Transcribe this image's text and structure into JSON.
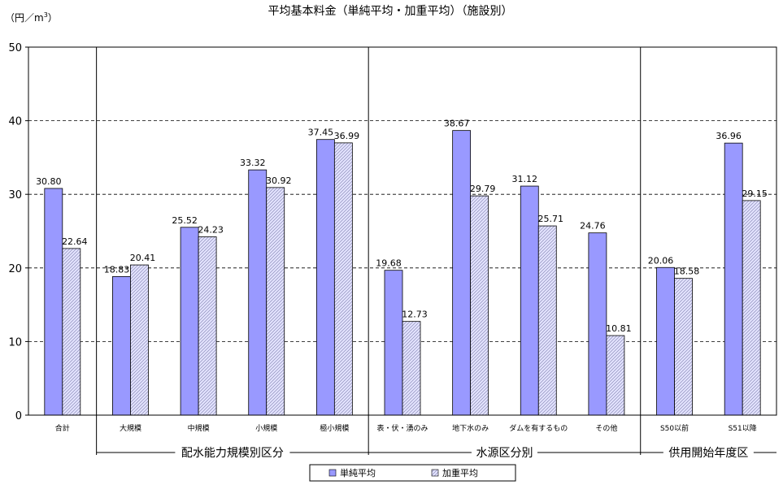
{
  "chart_data": {
    "type": "bar",
    "title": "平均基本料金（単純平均・加重平均）（施設別）",
    "yunit_prefix": "（円／m",
    "yunit_sup": "3",
    "yunit_suffix": "）",
    "ylim": [
      0,
      50
    ],
    "yticks": [
      0,
      10,
      20,
      30,
      40,
      50
    ],
    "grid": true,
    "legend_position": "bottom-center",
    "categories": [
      "合計",
      "大規模",
      "中規模",
      "小規模",
      "極小規模",
      "表・伏・湧のみ",
      "地下水のみ",
      "ダムを有するもの",
      "その他",
      "S50以前",
      "S51以降"
    ],
    "series": [
      {
        "name": "単純平均",
        "color": "#9999FF",
        "pattern": "solid",
        "values": [
          30.8,
          18.83,
          25.52,
          33.32,
          37.45,
          19.68,
          38.67,
          31.12,
          24.76,
          20.06,
          36.96
        ],
        "labels": [
          "30.80",
          "18.83",
          "25.52",
          "33.32",
          "37.45",
          "19.68",
          "38.67",
          "31.12",
          "24.76",
          "20.06",
          "36.96"
        ]
      },
      {
        "name": "加重平均",
        "color": "#CCCCFF",
        "pattern": "hatched",
        "values": [
          22.64,
          20.41,
          24.23,
          30.92,
          36.99,
          12.73,
          29.79,
          25.71,
          10.81,
          18.58,
          29.15
        ],
        "labels": [
          "22.64",
          "20.41",
          "24.23",
          "30.92",
          "36.99",
          "12.73",
          "29.79",
          "25.71",
          "10.81",
          "18.58",
          "29.15"
        ]
      }
    ],
    "groups": [
      {
        "label": "配水能力規模別区分",
        "start": 1,
        "end": 4
      },
      {
        "label": "水源区分別",
        "start": 5,
        "end": 8
      },
      {
        "label": "供用開始年度区",
        "start": 9,
        "end": 10
      }
    ]
  }
}
